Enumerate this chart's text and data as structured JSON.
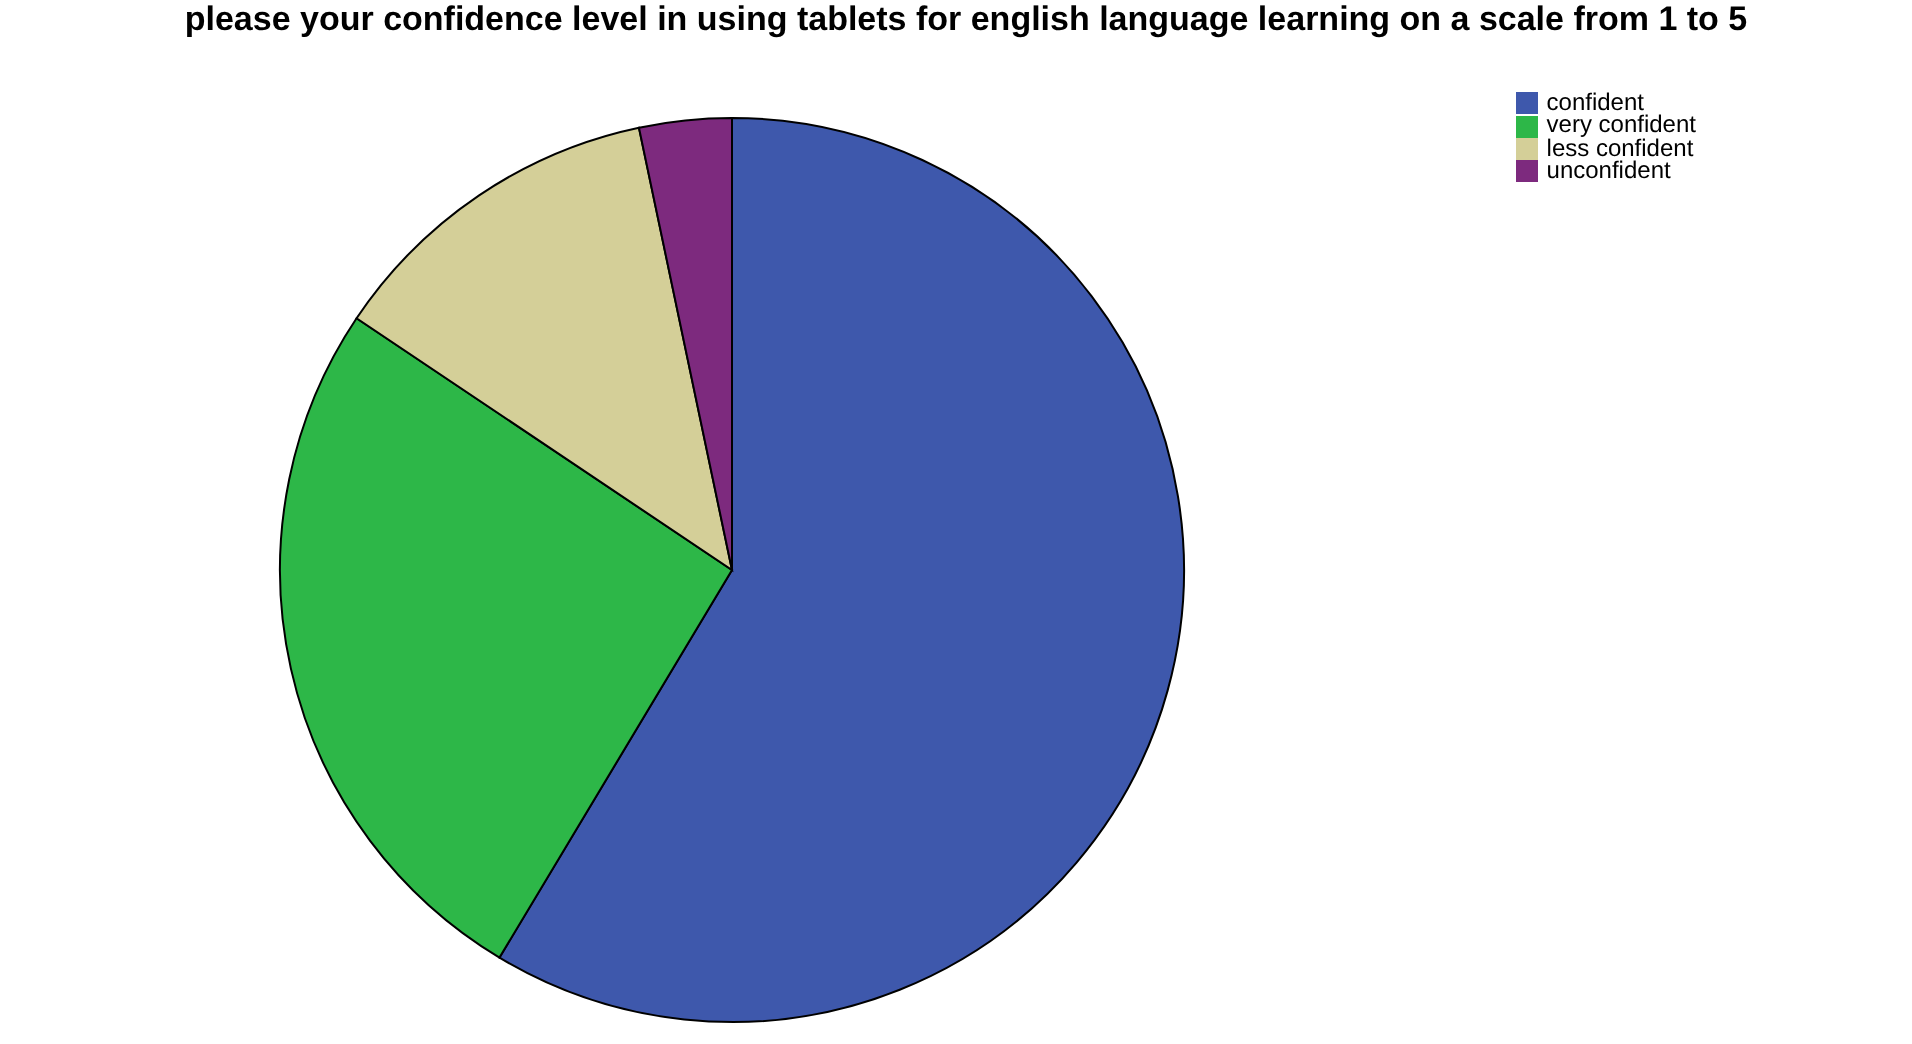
{
  "chart_data": {
    "type": "pie",
    "title": "please your confidence level in using tablets for english language learning on a scale from 1 to 5",
    "categories": [
      "confident",
      "very confident",
      "less confident",
      "unconfident"
    ],
    "values": [
      58.6,
      25.8,
      12.3,
      3.3
    ],
    "colors": [
      "#3e58ac",
      "#2db748",
      "#d4cf98",
      "#7d2a7e"
    ],
    "legend": "top right"
  }
}
